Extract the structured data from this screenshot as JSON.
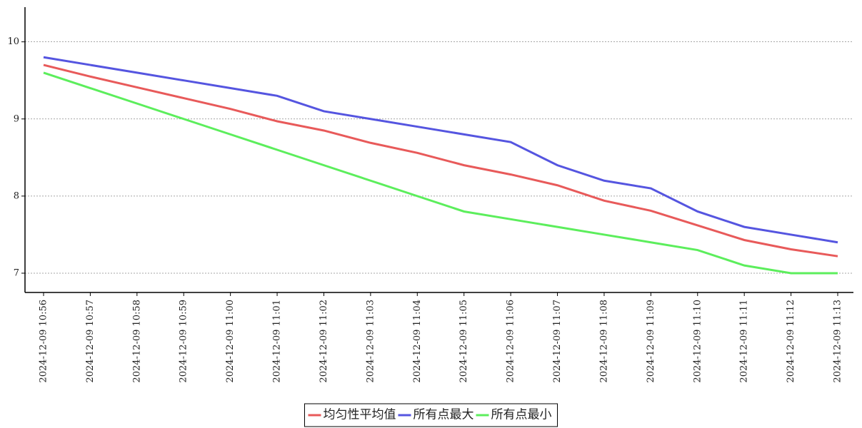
{
  "chart_data": {
    "type": "line",
    "categories": [
      "2024-12-09 10:56",
      "2024-12-09 10:57",
      "2024-12-09 10:58",
      "2024-12-09 10:59",
      "2024-12-09 11:00",
      "2024-12-09 11:01",
      "2024-12-09 11:02",
      "2024-12-09 11:03",
      "2024-12-09 11:04",
      "2024-12-09 11:05",
      "2024-12-09 11:06",
      "2024-12-09 11:07",
      "2024-12-09 11:08",
      "2024-12-09 11:09",
      "2024-12-09 11:10",
      "2024-12-09 11:11",
      "2024-12-09 11:12",
      "2024-12-09 11:13"
    ],
    "series": [
      {
        "name": "均匀性平均值",
        "color": "#e85a5a",
        "values": [
          9.7,
          9.55,
          9.41,
          9.27,
          9.13,
          8.97,
          8.85,
          8.69,
          8.56,
          8.4,
          8.28,
          8.14,
          7.94,
          7.81,
          7.62,
          7.43,
          7.31,
          7.22
        ]
      },
      {
        "name": "所有点最大",
        "color": "#5555e0",
        "values": [
          9.8,
          9.7,
          9.6,
          9.5,
          9.4,
          9.3,
          9.1,
          9.0,
          8.9,
          8.8,
          8.7,
          8.4,
          8.2,
          8.1,
          7.8,
          7.6,
          7.5,
          7.4
        ]
      },
      {
        "name": "所有点最小",
        "color": "#5cee5c",
        "values": [
          9.6,
          9.4,
          9.2,
          9.0,
          8.8,
          8.6,
          8.4,
          8.2,
          8.0,
          7.8,
          7.7,
          7.6,
          7.5,
          7.4,
          7.3,
          7.1,
          7.0,
          7.0
        ]
      }
    ],
    "ylim": [
      6.75,
      10.45
    ],
    "yticks": [
      7,
      8,
      9,
      10
    ],
    "grid": true,
    "legend": "bottom"
  }
}
